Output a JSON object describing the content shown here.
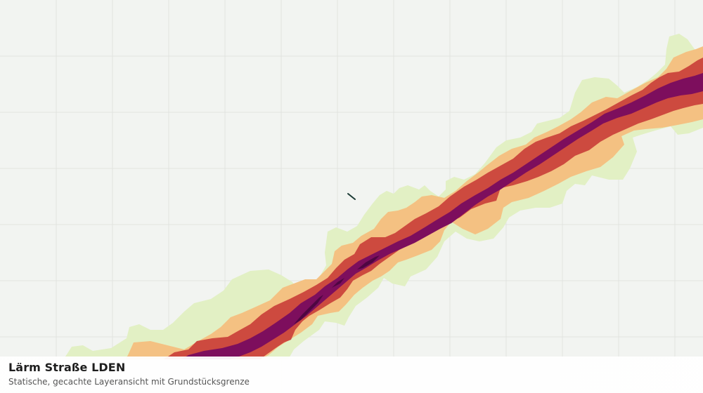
{
  "caption": {
    "title": "Lärm Straße LDEN",
    "subtitle": "Statische, gecachte Layeransicht mit Grundstücksgrenze"
  },
  "map": {
    "background_color": "#f2f4f1",
    "grid_color": "#e1e3df",
    "noise_band_colors": [
      "#e2f0c4",
      "#f4c182",
      "#cd4a3f",
      "#7d0e5d",
      "#4e0641"
    ],
    "boundary_color": "#1b3a34"
  }
}
